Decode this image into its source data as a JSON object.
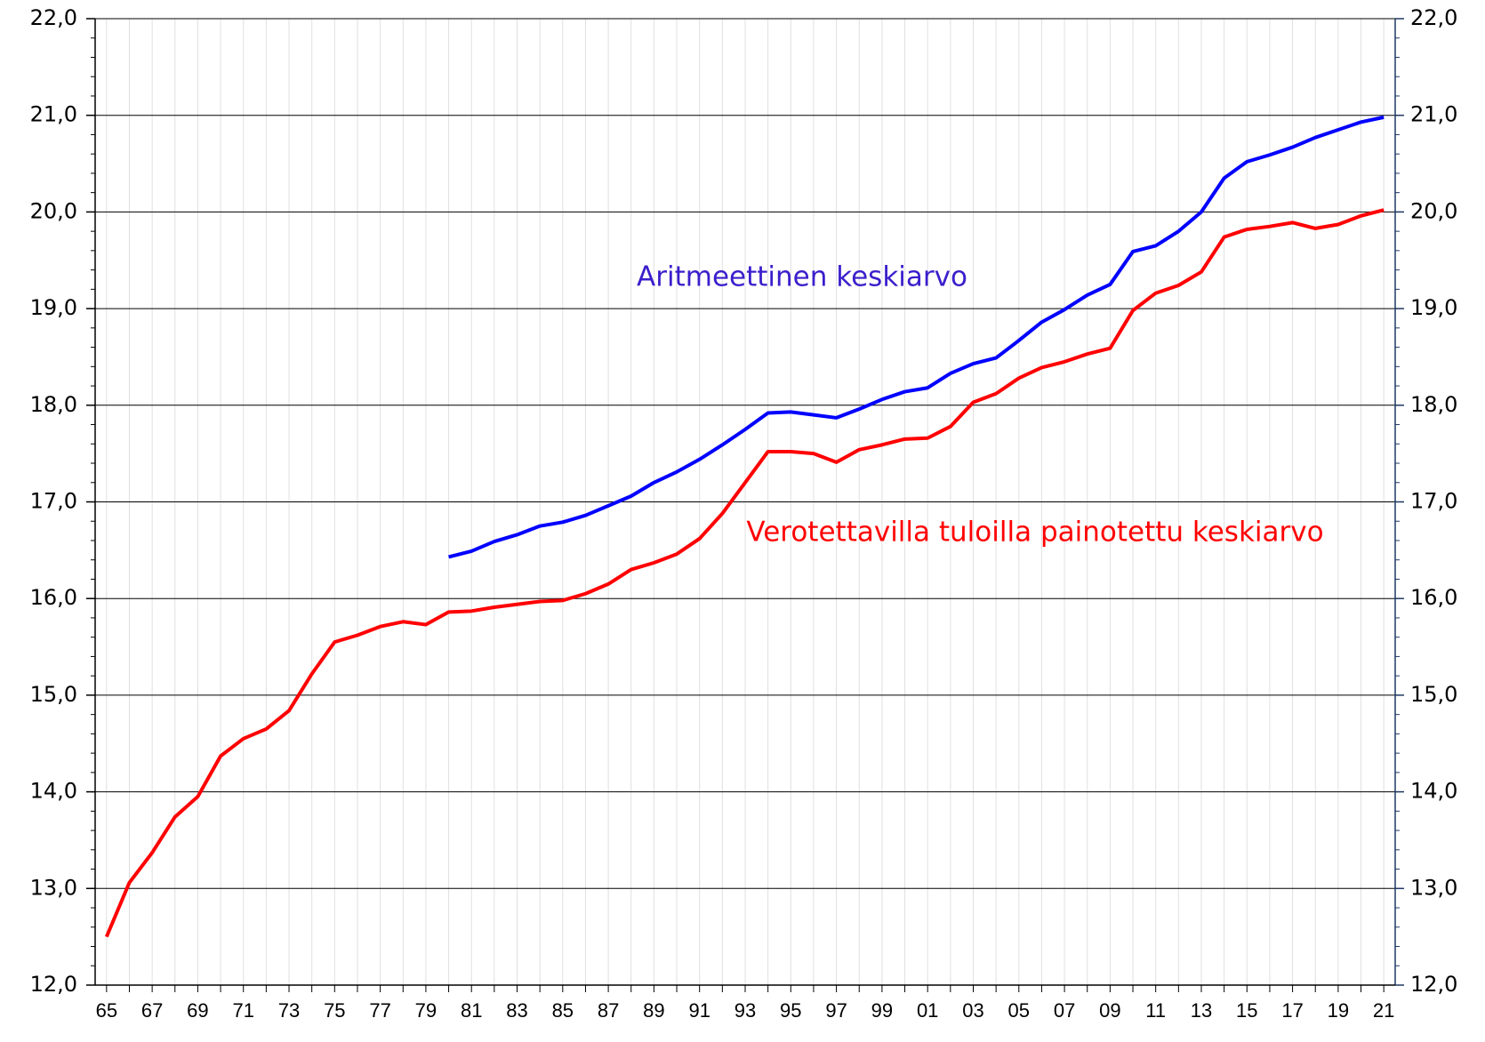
{
  "chart_data": {
    "type": "line",
    "categories": [
      "65",
      null,
      "67",
      null,
      "69",
      null,
      "71",
      null,
      "73",
      null,
      "75",
      null,
      "77",
      null,
      "79",
      null,
      "81",
      null,
      "83",
      null,
      "85",
      null,
      "87",
      null,
      "89",
      null,
      "91",
      null,
      "93",
      null,
      "95",
      null,
      "97",
      null,
      "99",
      null,
      "01",
      null,
      "03",
      null,
      "05",
      null,
      "07",
      null,
      "09",
      null,
      "11",
      null,
      "13",
      null,
      "15",
      null,
      "17",
      null,
      "19",
      null,
      "21"
    ],
    "series": [
      {
        "name": "Aritmeettinen keskiarvo",
        "color": "#0000ff",
        "values": [
          null,
          null,
          null,
          null,
          null,
          null,
          null,
          null,
          null,
          null,
          null,
          null,
          null,
          null,
          null,
          16.43,
          16.49,
          16.59,
          16.66,
          16.75,
          16.79,
          16.86,
          16.96,
          17.06,
          17.2,
          17.31,
          17.44,
          17.59,
          17.75,
          17.92,
          17.93,
          17.9,
          17.87,
          17.96,
          18.06,
          18.14,
          18.18,
          18.33,
          18.43,
          18.49,
          18.67,
          18.86,
          18.99,
          19.14,
          19.25,
          19.59,
          19.65,
          19.8,
          20.0,
          20.35,
          20.52,
          20.59,
          20.67,
          20.77,
          20.85,
          20.93,
          20.98
        ]
      },
      {
        "name": "Verotettavilla tuloilla painotettu keskiarvo",
        "color": "#ff0000",
        "values": [
          12.5,
          13.06,
          13.37,
          13.74,
          13.95,
          14.37,
          14.55,
          14.65,
          14.84,
          15.22,
          15.55,
          15.62,
          15.71,
          15.76,
          15.73,
          15.86,
          15.87,
          15.91,
          15.94,
          15.97,
          15.98,
          16.05,
          16.15,
          16.3,
          16.37,
          16.46,
          16.62,
          16.88,
          17.2,
          17.52,
          17.52,
          17.5,
          17.41,
          17.54,
          17.59,
          17.65,
          17.66,
          17.78,
          18.03,
          18.12,
          18.28,
          18.39,
          18.45,
          18.53,
          18.59,
          18.98,
          19.16,
          19.24,
          19.38,
          19.74,
          19.82,
          19.85,
          19.89,
          19.83,
          19.87,
          19.96,
          20.02
        ]
      }
    ],
    "ylim": [
      12,
      22
    ],
    "yticks": [
      {
        "value": 12,
        "label": "12,0"
      },
      {
        "value": 13,
        "label": "13,0"
      },
      {
        "value": 14,
        "label": "14,0"
      },
      {
        "value": 15,
        "label": "15,0"
      },
      {
        "value": 16,
        "label": "16,0"
      },
      {
        "value": 17,
        "label": "17,0"
      },
      {
        "value": 18,
        "label": "18,0"
      },
      {
        "value": 19,
        "label": "19,0"
      },
      {
        "value": 20,
        "label": "20,0"
      },
      {
        "value": 21,
        "label": "21,0"
      },
      {
        "value": 22,
        "label": "22,0"
      }
    ],
    "y2lim": [
      12,
      22
    ],
    "y2ticks": [
      {
        "value": 12,
        "label": "12,0"
      },
      {
        "value": 13,
        "label": "13,0"
      },
      {
        "value": 14,
        "label": "14,0"
      },
      {
        "value": 15,
        "label": "15,0"
      },
      {
        "value": 16,
        "label": "16,0"
      },
      {
        "value": 17,
        "label": "17,0"
      },
      {
        "value": 18,
        "label": "18,0"
      },
      {
        "value": 19,
        "label": "19,0"
      },
      {
        "value": 20,
        "label": "20,0"
      },
      {
        "value": 21,
        "label": "21,0"
      },
      {
        "value": 22,
        "label": "22,0"
      }
    ],
    "grid": true
  }
}
